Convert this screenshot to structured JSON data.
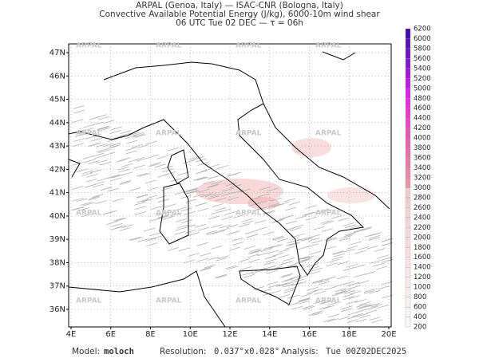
{
  "header": {
    "line1": "ARPAL (Genoa, Italy)  —  ISAC-CNR (Bologna, Italy)",
    "line2": "Convective Available Potential Energy (J/kg), 6000-10m wind shear",
    "line3": "06 UTC Tue 02 DEC  —  τ = 06h"
  },
  "map": {
    "lat_ticks": [
      {
        "value": 36,
        "label": "36N"
      },
      {
        "value": 37,
        "label": "37N"
      },
      {
        "value": 38,
        "label": "38N"
      },
      {
        "value": 39,
        "label": "39N"
      },
      {
        "value": 40,
        "label": "40N"
      },
      {
        "value": 41,
        "label": "41N"
      },
      {
        "value": 42,
        "label": "42N"
      },
      {
        "value": 43,
        "label": "43N"
      },
      {
        "value": 44,
        "label": "44N"
      },
      {
        "value": 45,
        "label": "45N"
      },
      {
        "value": 46,
        "label": "46N"
      },
      {
        "value": 47,
        "label": "47N"
      }
    ],
    "lon_ticks": [
      {
        "value": 4,
        "label": "4E"
      },
      {
        "value": 6,
        "label": "6E"
      },
      {
        "value": 8,
        "label": "8E"
      },
      {
        "value": 10,
        "label": "10E"
      },
      {
        "value": 12,
        "label": "12E"
      },
      {
        "value": 14,
        "label": "14E"
      },
      {
        "value": 16,
        "label": "16E"
      },
      {
        "value": 18,
        "label": "18E"
      },
      {
        "value": 20,
        "label": "20E"
      }
    ],
    "watermark": "ARPAL",
    "colorbar_ticks": [
      200,
      400,
      600,
      800,
      1000,
      1200,
      1400,
      1600,
      1800,
      2000,
      2200,
      2400,
      2600,
      2800,
      3000,
      3200,
      3400,
      3600,
      3800,
      4000,
      4200,
      4400,
      4600,
      4800,
      5000,
      5200,
      5400,
      5600,
      5800,
      6000,
      6200
    ]
  },
  "footer": {
    "model_label": "Model:",
    "model": "moloch",
    "resolution_label": "Resolution:",
    "resolution": "0.037°x0.028°",
    "analysis_label": "Analysis:",
    "analysis": "Tue 00Z02DEC2025"
  }
}
